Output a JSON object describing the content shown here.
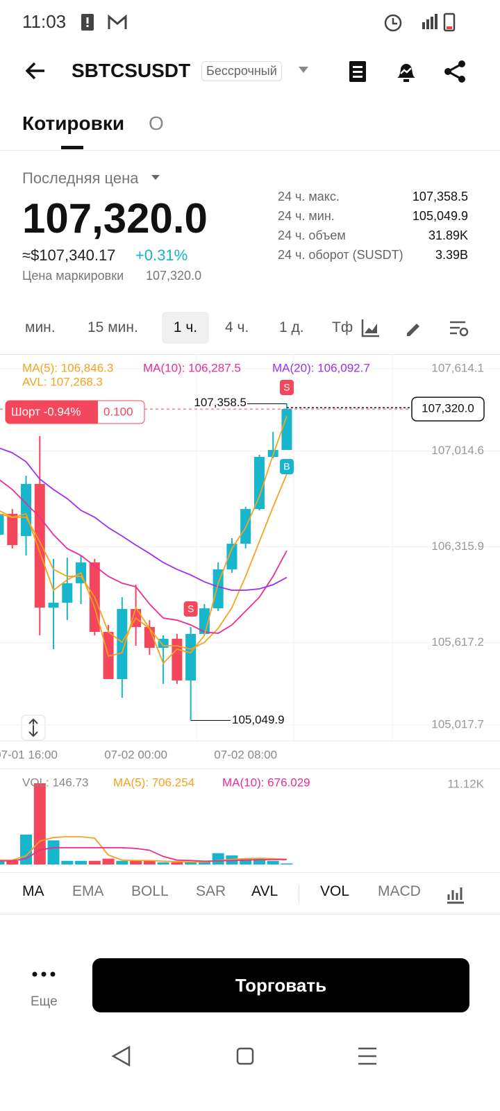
{
  "status_bar": {
    "time": "11:03"
  },
  "header": {
    "symbol": "SBTCSUSDT",
    "badge": "Бессрочный"
  },
  "tabs": [
    "Котировки",
    "О"
  ],
  "price": {
    "label": "Последняя цена",
    "last": "107,320.0",
    "usd": "≈$107,340.17",
    "change": "+0.31%",
    "mark_label": "Цена маркировки",
    "mark": "107,320.0"
  },
  "stats": [
    {
      "label": "24 ч. макс.",
      "value": "107,358.5"
    },
    {
      "label": "24 ч. мин.",
      "value": "105,049.9"
    },
    {
      "label": "24 ч. объем",
      "value": "31.89K"
    },
    {
      "label": "24 ч. оборот (SUSDT)",
      "value": "3.39B"
    }
  ],
  "intervals": [
    "мин.",
    "15 мин.",
    "1 ч.",
    "4 ч.",
    "1 д.",
    "Тф"
  ],
  "indicator_tabs": [
    "MA",
    "EMA",
    "BOLL",
    "SAR",
    "AVL",
    "VOL",
    "MACD"
  ],
  "footer": {
    "more": "Еще",
    "trade": "Торговать"
  },
  "chart_data": [
    {
      "type": "candlestick",
      "categories": [
        null,
        null,
        "07-01 16:00",
        null,
        null,
        null,
        null,
        null,
        null,
        null,
        "07-02 00:00",
        null,
        null,
        null,
        null,
        null,
        null,
        null,
        "07-02 08:00",
        null,
        null,
        null
      ],
      "open": [
        106404,
        106556,
        106394,
        106774,
        105872,
        105908,
        106050,
        106202,
        105695,
        105351,
        105862,
        105731,
        105579,
        105645,
        105341,
        105680,
        105867,
        106151,
        106338,
        106591,
        106971,
        107022
      ],
      "high": [
        106581,
        106591,
        106834,
        107123,
        106227,
        106237,
        106252,
        106227,
        105746,
        105948,
        106040,
        105781,
        105670,
        105680,
        105731,
        105898,
        106202,
        106379,
        106607,
        106986,
        107153,
        107358.5
      ],
      "low": [
        106379,
        106303,
        106252,
        105670,
        105569,
        105781,
        105898,
        105670,
        105351,
        105214,
        105594,
        105528,
        105316,
        105316,
        105049.9,
        105670,
        105847,
        106126,
        106303,
        106581,
        106961,
        107022
      ],
      "close": [
        106556,
        106328,
        106774,
        105872,
        105908,
        106050,
        106202,
        105695,
        105351,
        105862,
        105731,
        105579,
        105645,
        105341,
        105680,
        105867,
        106151,
        106338,
        106591,
        106971,
        107022,
        107320
      ],
      "up_color": "#17b6cc",
      "down_color": "#f4475b",
      "series": [
        {
          "name": "MA(5)",
          "label": "MA(5): 106,846.3",
          "color": "#f6a21e",
          "values": [
            106556,
            106531,
            106531,
            106353,
            106151,
            106100,
            106100,
            105948,
            105695,
            105619,
            105796,
            105720,
            105594,
            105594,
            105569,
            105619,
            105720,
            105872,
            106100,
            106353,
            106606,
            106846.3
          ]
        },
        {
          "name": "MA(10)",
          "label": "MA(10): 106,287.5",
          "color": "#ea2d95",
          "values": [
            106809,
            106733,
            106632,
            106531,
            106404,
            106303,
            106252,
            106176,
            106100,
            106050,
            106024,
            105898,
            105796,
            105781,
            105746,
            105695,
            105685,
            105746,
            105847,
            105948,
            106100,
            106287.5
          ]
        },
        {
          "name": "MA(20)",
          "label": "MA(20): 106,092.7",
          "color": "#9a2ff5",
          "values": [
            107037,
            107001,
            106936,
            106809,
            106733,
            106667,
            106581,
            106531,
            106455,
            106394,
            106328,
            106267,
            106201,
            106151,
            106110,
            106060,
            106024,
            105999,
            105999,
            106009,
            106039,
            106092.7
          ]
        },
        {
          "name": "AVL",
          "label": "AVL: 107,268.3",
          "color": "#f6a21e",
          "values": [
            106581,
            106531,
            106556,
            106277,
            105999,
            106075,
            106125,
            105872,
            105518,
            105543,
            105872,
            105720,
            105467,
            105569,
            105543,
            105670,
            106050,
            106303,
            106455,
            106682,
            106986,
            107268.3
          ]
        }
      ],
      "ylim": [
        104910.5,
        107720.4
      ],
      "yticks": [
        {
          "value": 107614.1,
          "label": "107,614.1"
        },
        {
          "value": 107014.6,
          "label": "107,014.6"
        },
        {
          "value": 106315.9,
          "label": "106,315.9"
        },
        {
          "value": 105617.2,
          "label": "105,617.2"
        },
        {
          "value": 105017.7,
          "label": "105,017.7"
        }
      ],
      "high_label": "107,358.5",
      "low_label": "105,049.9",
      "last_price_label": "107,320.0",
      "position_label": "Шорт -0.94%",
      "position_qty": "0.100",
      "signals": [
        "S",
        "B",
        "S"
      ]
    },
    {
      "type": "bar",
      "title": "VOL: 146.73",
      "values": [
        500,
        500,
        4100,
        11120,
        3300,
        500,
        500,
        500,
        800,
        500,
        500,
        500,
        300,
        300,
        300,
        500,
        1550,
        1250,
        800,
        800,
        500,
        146.73
      ],
      "colors": [
        "#17b6cc",
        "#f4475b",
        "#17b6cc",
        "#f4475b",
        "#17b6cc",
        "#17b6cc",
        "#17b6cc",
        "#f4475b",
        "#f4475b",
        "#17b6cc",
        "#f4475b",
        "#f4475b",
        "#17b6cc",
        "#f4475b",
        "#17b6cc",
        "#17b6cc",
        "#17b6cc",
        "#17b6cc",
        "#17b6cc",
        "#17b6cc",
        "#17b6cc",
        "#17b6cc"
      ],
      "series": [
        {
          "name": "MA(5)",
          "label": "MA(5): 706.254",
          "color": "#f6a21e",
          "values": [
            600,
            600,
            1200,
            3200,
            3700,
            3800,
            3800,
            3600,
            1300,
            600,
            550,
            550,
            450,
            400,
            350,
            350,
            550,
            700,
            800,
            850,
            800,
            706.254
          ]
        },
        {
          "name": "MA(10)",
          "label": "MA(10): 676.029",
          "color": "#ea2d95",
          "values": [
            500,
            500,
            800,
            2000,
            2300,
            2300,
            2300,
            2300,
            2300,
            2300,
            2200,
            1950,
            1100,
            600,
            550,
            450,
            500,
            550,
            600,
            650,
            680,
            676.029
          ]
        }
      ],
      "ylim": [
        0,
        11120
      ],
      "yticks": [
        {
          "value": 11120,
          "label": "11.12K"
        }
      ]
    }
  ]
}
